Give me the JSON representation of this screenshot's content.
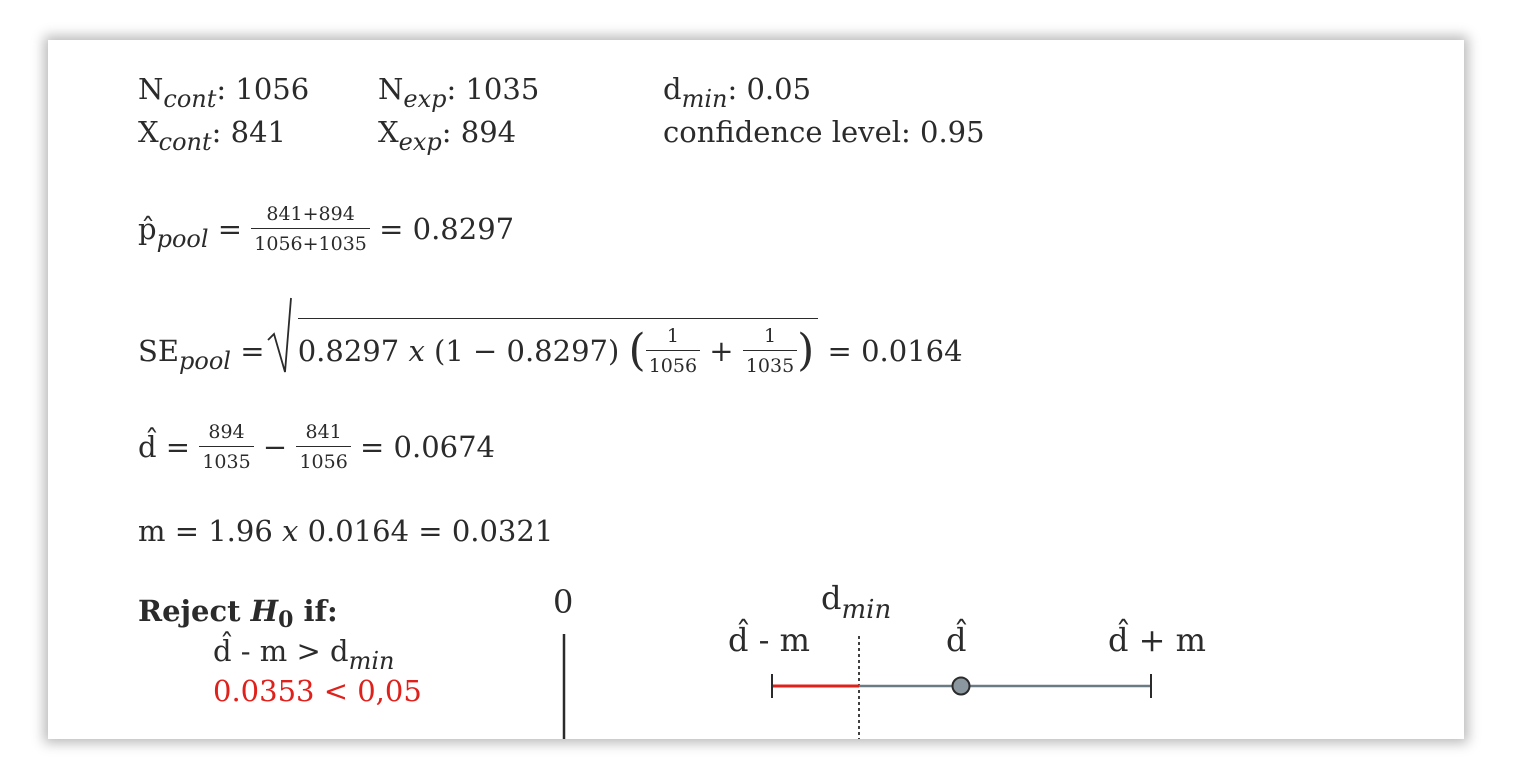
{
  "params": {
    "n_cont_base": "N",
    "n_cont_sub": "cont",
    "n_cont_val": ": 1056",
    "x_cont_base": "X",
    "x_cont_sub": "cont",
    "x_cont_val": ":  841",
    "n_exp_base": "N",
    "n_exp_sub": "exp",
    "n_exp_val": ": 1035",
    "x_exp_base": "X",
    "x_exp_sub": "exp",
    "x_exp_val": ":  894",
    "dmin_base": "d",
    "dmin_sub": "min",
    "dmin_val": ": 0.05",
    "confidence": "confidence level: 0.95"
  },
  "pool": {
    "base": "p̂",
    "sub": "pool",
    "eq": " = ",
    "num": "841+894",
    "den": "1056+1035",
    "result": " =  0.8297"
  },
  "se": {
    "base": "SE",
    "sub": "pool",
    "eq": " = ",
    "a": "0.8297 ",
    "x": "x",
    "b": " (1  − 0.8297) ",
    "lparen": "(",
    "rparen": ")",
    "f1_num": "1",
    "f1_den": "1056",
    "plus": " +  ",
    "f2_num": "1",
    "f2_den": "1035",
    "result": " = 0.0164"
  },
  "dhat": {
    "base": "d̂",
    "eq": " = ",
    "f1_num": "894",
    "f1_den": "1035",
    "minus": "  − ",
    "f2_num": "841",
    "f2_den": "1056",
    "result": " = 0.0674"
  },
  "margin": {
    "pre": "m = 1.96 ",
    "x": "x",
    "post": " 0.0164 = 0.0321"
  },
  "reject": {
    "title_pre": "Reject ",
    "h": "H",
    "h_sub": "0",
    "title_post": " if:",
    "cond_pre": "d̂ - m > d",
    "cond_sub": "min",
    "check": "0.0353 < 0,05"
  },
  "diagram": {
    "zero_label": "0",
    "dmin_base": "d",
    "dmin_sub": "min",
    "lower_label": "d̂ - m",
    "point_label": "d̂",
    "upper_label": "d̂ + m",
    "interval_color": "#6b7b84",
    "below_min_color": "#e0201b",
    "point_fill": "#8a979e"
  }
}
